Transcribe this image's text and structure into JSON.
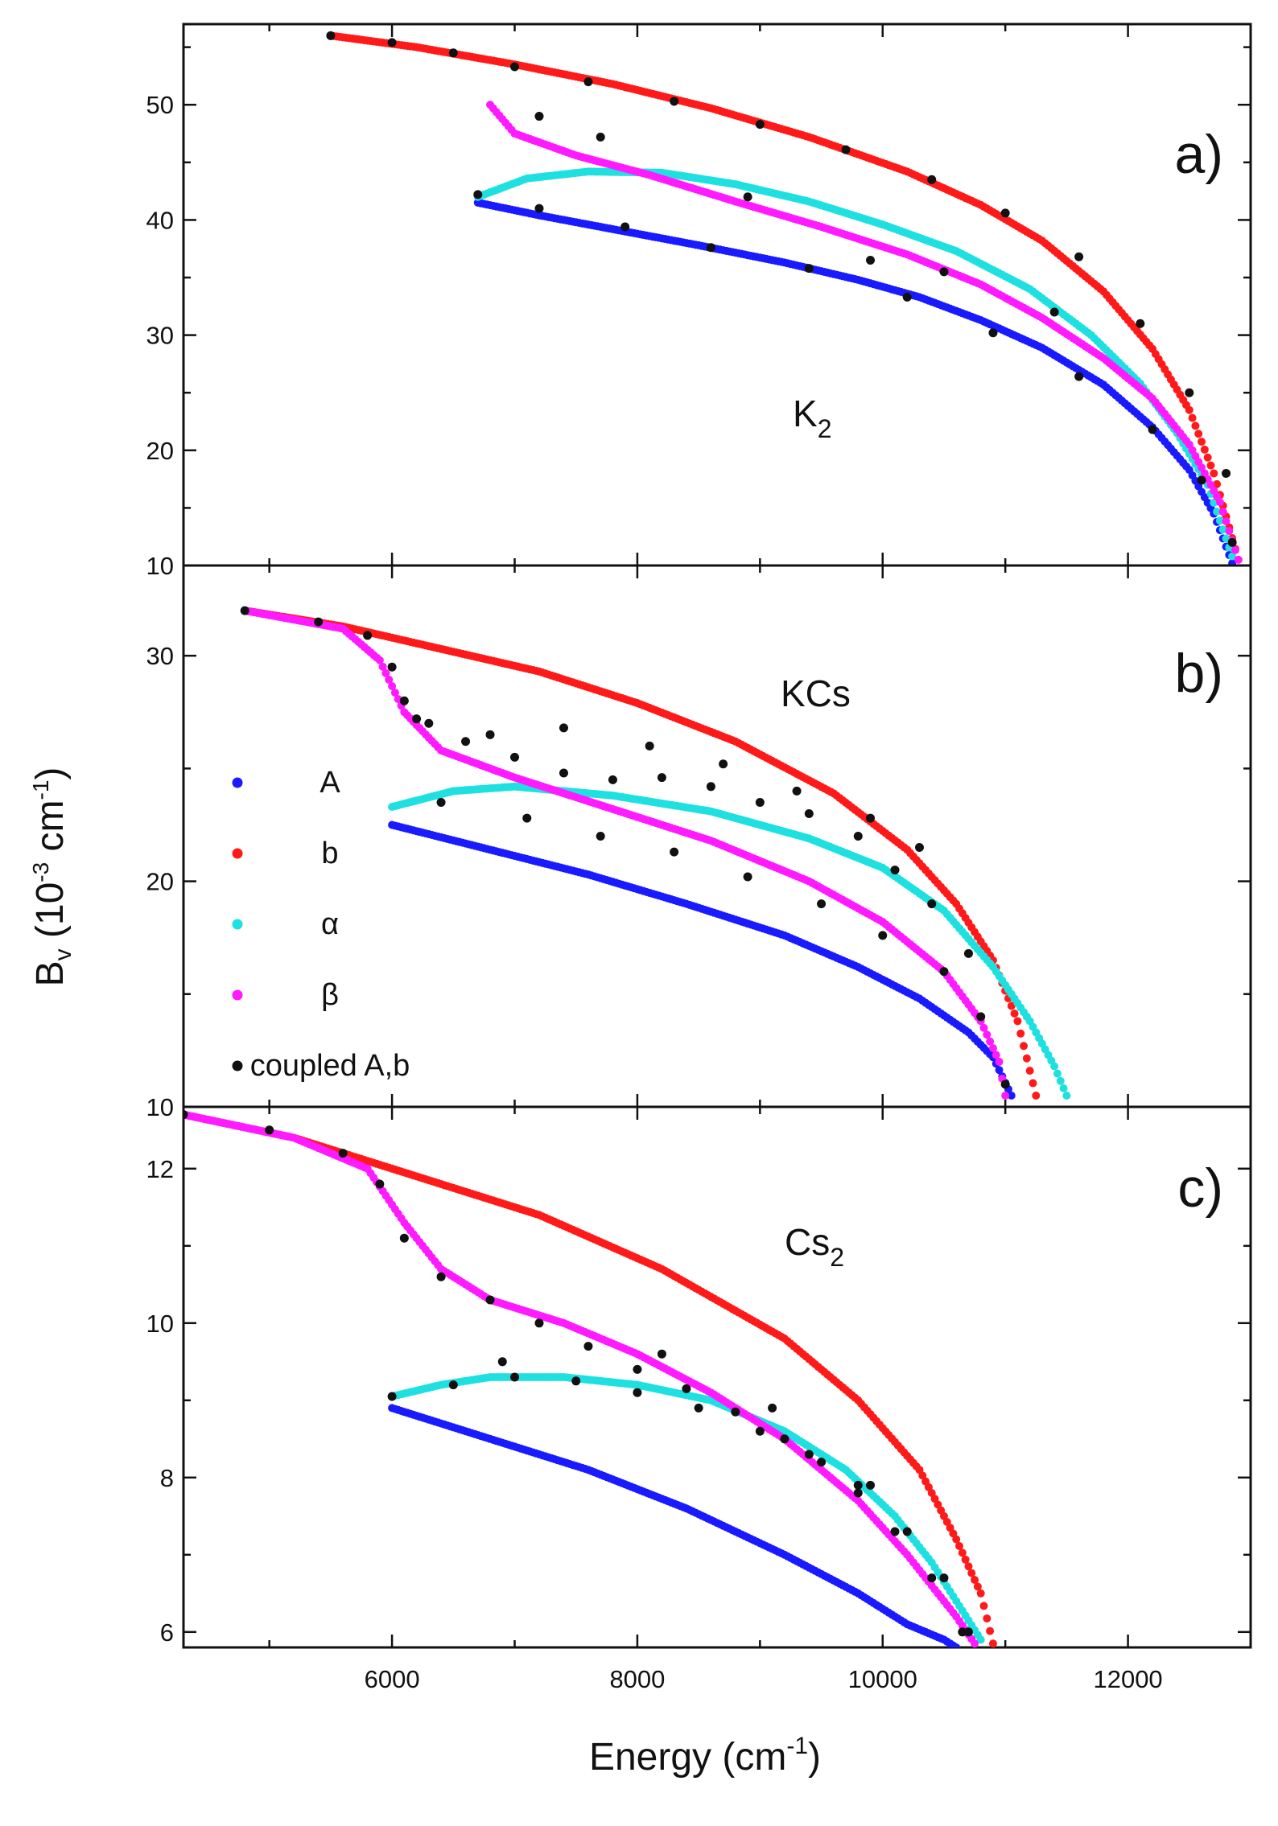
{
  "figure": {
    "xaxis_title": "Energy (cm",
    "xaxis_unit_exp": "-1",
    "xaxis_unit_close": ")",
    "yaxis_title_main": "B",
    "yaxis_title_sub": "v",
    "yaxis_title_units": "(10",
    "yaxis_title_exp1": "-3",
    "yaxis_title_cm": "cm",
    "yaxis_title_exp2": "-1",
    "yaxis_title_close": ")"
  },
  "legend": [
    {
      "key": "A",
      "label": "A",
      "color": "#1a1aff"
    },
    {
      "key": "b",
      "label": "b",
      "color": "#ff1a1a"
    },
    {
      "key": "alpha",
      "label": "α",
      "color": "#1fe0e0"
    },
    {
      "key": "beta",
      "label": "β",
      "color": "#ff1aff"
    },
    {
      "key": "coupled",
      "label": "coupled A,b",
      "color": "#111111"
    }
  ],
  "chart_data": [
    {
      "type": "scatter",
      "panel": "a)",
      "molecule": "K",
      "molecule_sub": "2",
      "xlabel": "Energy (cm-1)",
      "ylabel": "Bv (10-3 cm-1)",
      "xlim": [
        4300,
        13000
      ],
      "ylim": [
        10,
        57
      ],
      "xticks": [
        6000,
        8000,
        10000,
        12000
      ],
      "yticks": [
        10,
        20,
        30,
        40,
        50
      ],
      "ytick_labels": [
        "10",
        "20",
        "30",
        "40",
        "50"
      ],
      "series": [
        {
          "name": "A",
          "x": [
            6700,
            7200,
            7800,
            8500,
            9200,
            9800,
            10300,
            10800,
            11300,
            11800,
            12200,
            12500,
            12700,
            12850
          ],
          "values": [
            41.5,
            40.4,
            39.2,
            37.8,
            36.3,
            34.8,
            33.3,
            31.3,
            28.9,
            25.7,
            22.0,
            18.3,
            14.5,
            10.2
          ]
        },
        {
          "name": "b",
          "x": [
            5500,
            6200,
            7000,
            7800,
            8600,
            9400,
            10200,
            10800,
            11300,
            11800,
            12200,
            12500,
            12700,
            12900
          ],
          "values": [
            56.0,
            55.0,
            53.5,
            51.8,
            49.7,
            47.2,
            44.2,
            41.3,
            38.2,
            33.8,
            28.8,
            23.5,
            18.0,
            10.5
          ]
        },
        {
          "name": "α",
          "x": [
            6700,
            7100,
            7600,
            8200,
            8800,
            9400,
            10000,
            10600,
            11200,
            11700,
            12100,
            12400,
            12650,
            12850
          ],
          "values": [
            42.0,
            43.6,
            44.2,
            44.1,
            43.1,
            41.6,
            39.6,
            37.3,
            34.0,
            30.0,
            25.8,
            21.5,
            17.0,
            10.8
          ]
        },
        {
          "name": "β",
          "x": [
            6800,
            7000,
            7500,
            8100,
            8800,
            9500,
            10200,
            10800,
            11300,
            11800,
            12200,
            12500,
            12750,
            12900
          ],
          "values": [
            50.0,
            47.5,
            45.6,
            43.9,
            41.6,
            39.4,
            37.0,
            34.4,
            31.5,
            28.0,
            24.5,
            20.5,
            15.5,
            10.5
          ]
        },
        {
          "name": "coupled A,b",
          "x": [
            5500,
            6000,
            6500,
            7000,
            7600,
            8300,
            9000,
            9700,
            10400,
            11000,
            11600,
            12100,
            12500,
            12800,
            6700,
            7200,
            7900,
            8600,
            9400,
            10200,
            10900,
            11600,
            12200,
            12600,
            12850,
            7200,
            7700,
            8900,
            9900,
            10500,
            11400
          ],
          "values": [
            56.0,
            55.4,
            54.5,
            53.3,
            52.0,
            50.3,
            48.3,
            46.1,
            43.5,
            40.6,
            36.8,
            31.0,
            25.0,
            18.0,
            42.2,
            41.0,
            39.4,
            37.6,
            35.8,
            33.3,
            30.2,
            26.4,
            21.8,
            17.4,
            12.0,
            49.0,
            47.2,
            42.0,
            36.5,
            35.5,
            32.0
          ]
        }
      ]
    },
    {
      "type": "scatter",
      "panel": "b)",
      "molecule": "KCs",
      "xlabel": "Energy (cm-1)",
      "ylabel": "Bv (10-3 cm-1)",
      "xlim": [
        4300,
        13000
      ],
      "ylim": [
        10,
        34
      ],
      "xticks": [
        6000,
        8000,
        10000,
        12000
      ],
      "yticks": [
        10,
        20,
        30
      ],
      "ytick_labels": [
        "10",
        "20",
        "30"
      ],
      "series": [
        {
          "name": "A",
          "x": [
            6000,
            6800,
            7600,
            8400,
            9200,
            9800,
            10300,
            10700,
            10900,
            11050
          ],
          "values": [
            22.5,
            21.4,
            20.3,
            19.0,
            17.6,
            16.2,
            14.8,
            13.3,
            12.2,
            10.5
          ]
        },
        {
          "name": "b",
          "x": [
            4800,
            5600,
            6400,
            7200,
            8000,
            8800,
            9600,
            10200,
            10600,
            10900,
            11100,
            11250
          ],
          "values": [
            32.0,
            31.3,
            30.3,
            29.3,
            27.9,
            26.2,
            23.9,
            21.4,
            19.0,
            16.5,
            13.8,
            10.5
          ]
        },
        {
          "name": "α",
          "x": [
            6000,
            6500,
            7000,
            7800,
            8600,
            9400,
            10000,
            10500,
            10900,
            11200,
            11400,
            11500
          ],
          "values": [
            23.3,
            24.0,
            24.2,
            23.8,
            23.1,
            21.9,
            20.6,
            18.7,
            16.2,
            13.8,
            11.8,
            10.5
          ]
        },
        {
          "name": "β",
          "x": [
            4800,
            5600,
            5900,
            6100,
            6400,
            7000,
            7800,
            8600,
            9400,
            10000,
            10500,
            10800,
            10950,
            11000
          ],
          "values": [
            32.0,
            31.2,
            29.8,
            27.5,
            25.8,
            24.6,
            23.2,
            21.8,
            20.0,
            18.2,
            16.0,
            13.8,
            12.0,
            10.5
          ]
        },
        {
          "name": "coupled A,b",
          "x": [
            4800,
            5400,
            5800,
            6000,
            6100,
            6300,
            6600,
            7000,
            7400,
            7800,
            8200,
            8600,
            9000,
            9400,
            9800,
            10100,
            10400,
            10700,
            6400,
            7100,
            7700,
            8300,
            8900,
            9500,
            10000,
            10500,
            10800,
            11000,
            6200,
            6800,
            7400,
            8100,
            8700,
            9300,
            9900,
            10300
          ],
          "values": [
            32.0,
            31.5,
            30.9,
            29.5,
            28.0,
            27.0,
            26.2,
            25.5,
            24.8,
            24.5,
            24.6,
            24.2,
            23.5,
            23.0,
            22.0,
            20.5,
            19.0,
            16.8,
            23.5,
            22.8,
            22.0,
            21.3,
            20.2,
            19.0,
            17.6,
            16.0,
            14.0,
            11.0,
            27.2,
            26.5,
            26.8,
            26.0,
            25.2,
            24.0,
            22.8,
            21.5
          ]
        }
      ]
    },
    {
      "type": "scatter",
      "panel": "c)",
      "molecule": "Cs",
      "molecule_sub": "2",
      "xlabel": "Energy (cm-1)",
      "ylabel": "Bv (10-3 cm-1)",
      "xlim": [
        4300,
        13000
      ],
      "ylim": [
        5.8,
        12.8
      ],
      "xticks": [
        6000,
        8000,
        10000,
        12000
      ],
      "yticks": [
        6,
        8,
        10,
        12
      ],
      "ytick_labels": [
        "6",
        "8",
        "10",
        "12"
      ],
      "series": [
        {
          "name": "A",
          "x": [
            6000,
            6800,
            7600,
            8400,
            9200,
            9800,
            10200,
            10500,
            10600
          ],
          "values": [
            8.9,
            8.5,
            8.1,
            7.6,
            7.0,
            6.5,
            6.1,
            5.9,
            5.8
          ]
        },
        {
          "name": "b",
          "x": [
            4300,
            5200,
            6200,
            7200,
            8200,
            9200,
            9800,
            10300,
            10600,
            10800,
            10900
          ],
          "values": [
            12.7,
            12.4,
            11.9,
            11.4,
            10.7,
            9.8,
            9.0,
            8.1,
            7.2,
            6.5,
            5.85
          ]
        },
        {
          "name": "α",
          "x": [
            6000,
            6400,
            6800,
            7400,
            8000,
            8600,
            9200,
            9700,
            10100,
            10400,
            10600,
            10800
          ],
          "values": [
            9.05,
            9.2,
            9.3,
            9.3,
            9.2,
            9.0,
            8.6,
            8.1,
            7.5,
            6.9,
            6.4,
            5.9
          ]
        },
        {
          "name": "β",
          "x": [
            4300,
            5200,
            5800,
            6100,
            6400,
            6800,
            7400,
            8000,
            8600,
            9200,
            9800,
            10200,
            10600,
            10750
          ],
          "values": [
            12.7,
            12.4,
            12.0,
            11.3,
            10.7,
            10.3,
            10.0,
            9.6,
            9.1,
            8.5,
            7.7,
            7.0,
            6.2,
            5.85
          ]
        },
        {
          "name": "coupled A,b",
          "x": [
            4300,
            5000,
            5600,
            5900,
            6100,
            6400,
            6800,
            7200,
            7600,
            8000,
            8400,
            8800,
            9200,
            9500,
            9800,
            10100,
            10400,
            10650,
            6000,
            6500,
            7000,
            7500,
            8000,
            8500,
            9000,
            9400,
            9800,
            10200,
            10500,
            10700,
            6900,
            8200,
            9100,
            9900
          ],
          "values": [
            12.7,
            12.5,
            12.2,
            11.8,
            11.1,
            10.6,
            10.3,
            10.0,
            9.7,
            9.4,
            9.15,
            8.85,
            8.5,
            8.2,
            7.8,
            7.3,
            6.7,
            6.0,
            9.05,
            9.2,
            9.3,
            9.25,
            9.1,
            8.9,
            8.6,
            8.3,
            7.9,
            7.3,
            6.7,
            6.0,
            9.5,
            9.6,
            8.9,
            7.9
          ]
        }
      ]
    }
  ]
}
